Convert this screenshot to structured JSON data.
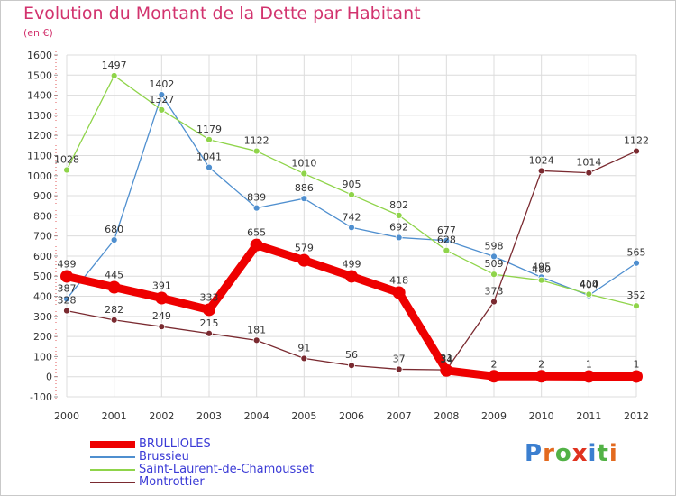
{
  "title": "Evolution du Montant de la Dette par Habitant",
  "subtitle": "(en €)",
  "logo_text": "Proxiti",
  "chart_data": {
    "type": "line",
    "title": "Evolution du Montant de la Dette par Habitant",
    "ylabel": "(en €)",
    "xlabel": "",
    "ylim": [
      -100,
      1600
    ],
    "yticks": [
      -100,
      0,
      100,
      200,
      300,
      400,
      500,
      600,
      700,
      800,
      900,
      1000,
      1100,
      1200,
      1300,
      1400,
      1500,
      1600
    ],
    "x": [
      "2000",
      "2001",
      "2002",
      "2003",
      "2004",
      "2005",
      "2006",
      "2007",
      "2008",
      "2009",
      "2010",
      "2011",
      "2012"
    ],
    "grid": true,
    "legend_position": "bottom-left",
    "series": [
      {
        "name": "Brussieu",
        "color": "#4f8fcf",
        "values": [
          387,
          680,
          1402,
          1041,
          839,
          886,
          742,
          692,
          677,
          598,
          495,
          404,
          565
        ]
      },
      {
        "name": "Saint-Laurent-de-Chamousset",
        "color": "#8fd44a",
        "values": [
          1028,
          1497,
          1327,
          1179,
          1122,
          1010,
          905,
          802,
          628,
          509,
          480,
          410,
          352
        ]
      },
      {
        "name": "Montrottier",
        "color": "#7a2a30",
        "values": [
          328,
          282,
          249,
          215,
          181,
          91,
          56,
          37,
          34,
          373,
          1024,
          1014,
          1122
        ]
      },
      {
        "name": "BRULLIOLES",
        "color": "#ee0000",
        "values": [
          499,
          445,
          391,
          333,
          655,
          579,
          499,
          418,
          31,
          2,
          2,
          1,
          1
        ]
      }
    ]
  }
}
